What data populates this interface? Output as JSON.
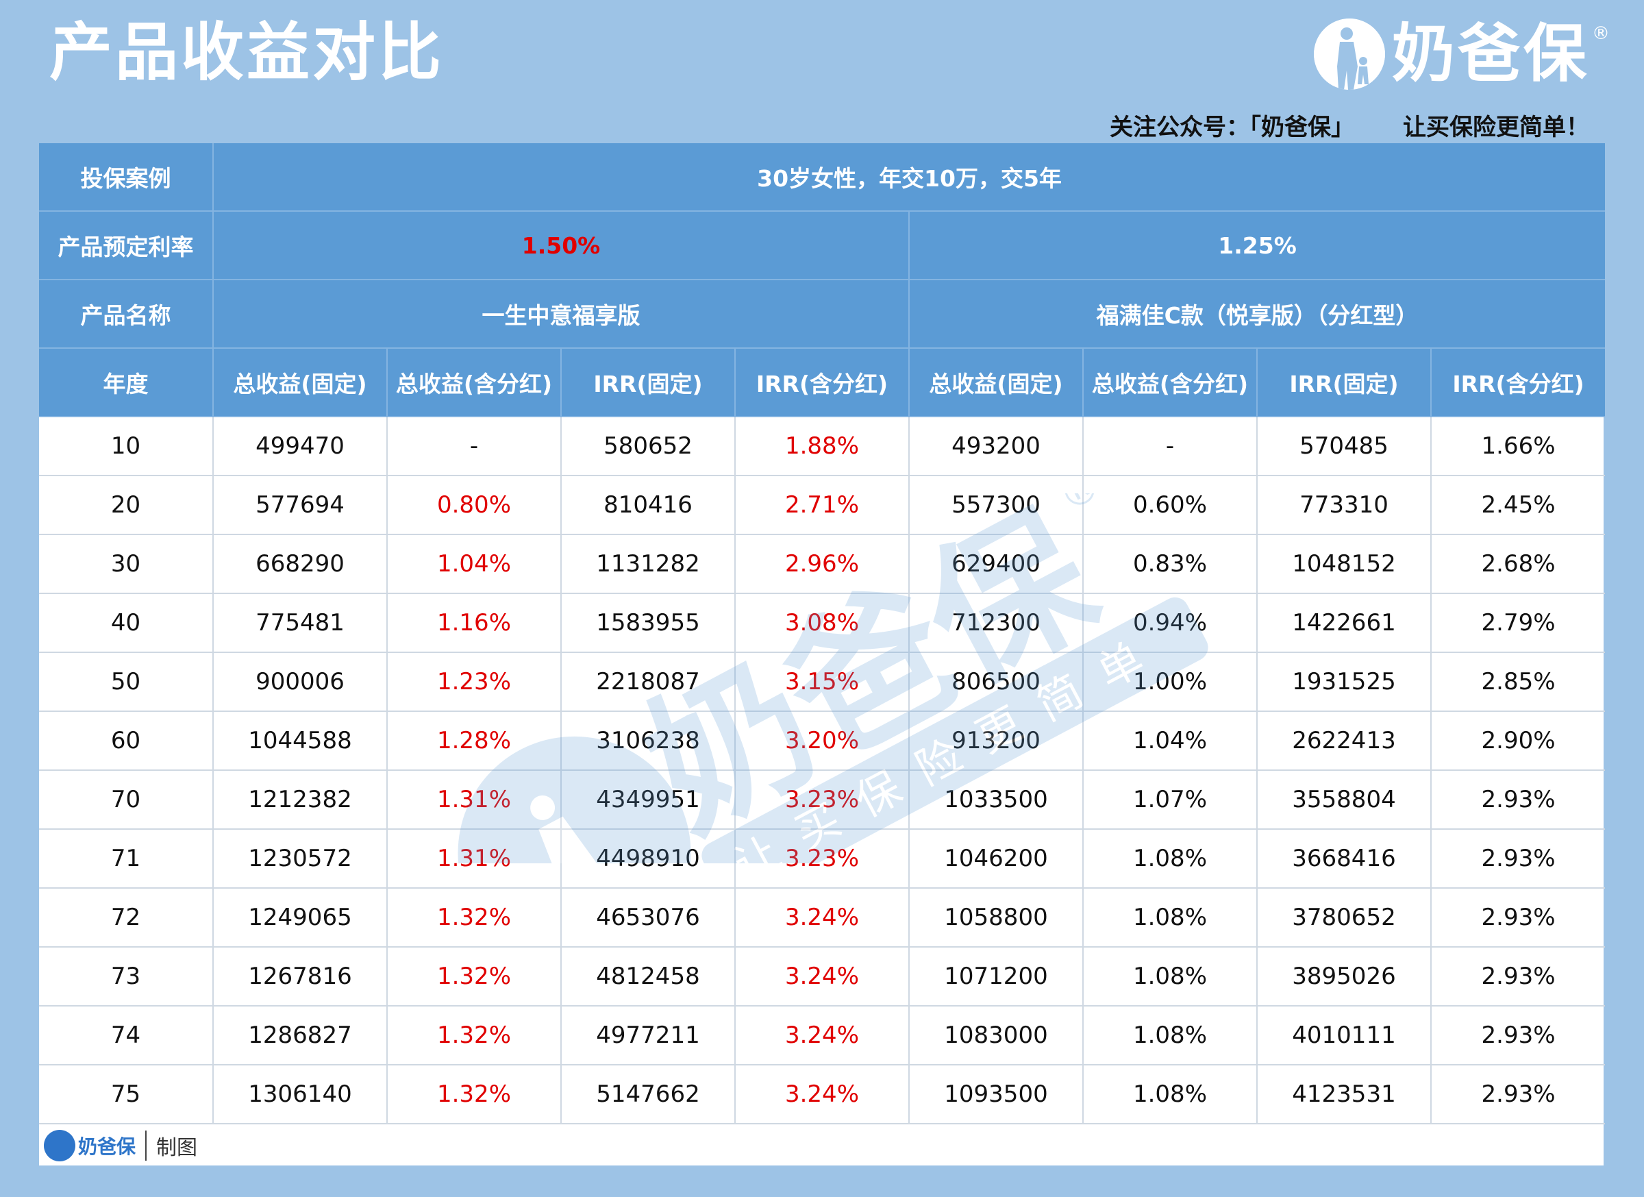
{
  "header": {
    "title": "产品收益对比",
    "brand": "奶爸保",
    "reg_mark": "®",
    "slogan": "关注公众号：「奶爸保」      让买保险更简单！"
  },
  "table": {
    "case_label": "投保案例",
    "case_value": "30岁女性，年交10万，交5年",
    "rate_label": "产品预定利率",
    "rate_a": "1.50%",
    "rate_b": "1.25%",
    "name_label": "产品名称",
    "name_a": "一生中意福享版",
    "name_b": "福满佳C款（悦享版）（分红型）",
    "columns": [
      "年度",
      "总收益(固定)",
      "总收益(含分红)",
      "IRR(固定)",
      "IRR(含分红)",
      "总收益(固定)",
      "总收益(含分红)",
      "IRR(固定)",
      "IRR(含分红)"
    ],
    "rows": [
      [
        "10",
        "499470",
        "-",
        "580652",
        "1.88%",
        "493200",
        "-",
        "570485",
        "1.66%"
      ],
      [
        "20",
        "577694",
        "0.80%",
        "810416",
        "2.71%",
        "557300",
        "0.60%",
        "773310",
        "2.45%"
      ],
      [
        "30",
        "668290",
        "1.04%",
        "1131282",
        "2.96%",
        "629400",
        "0.83%",
        "1048152",
        "2.68%"
      ],
      [
        "40",
        "775481",
        "1.16%",
        "1583955",
        "3.08%",
        "712300",
        "0.94%",
        "1422661",
        "2.79%"
      ],
      [
        "50",
        "900006",
        "1.23%",
        "2218087",
        "3.15%",
        "806500",
        "1.00%",
        "1931525",
        "2.85%"
      ],
      [
        "60",
        "1044588",
        "1.28%",
        "3106238",
        "3.20%",
        "913200",
        "1.04%",
        "2622413",
        "2.90%"
      ],
      [
        "70",
        "1212382",
        "1.31%",
        "4349951",
        "3.23%",
        "1033500",
        "1.07%",
        "3558804",
        "2.93%"
      ],
      [
        "71",
        "1230572",
        "1.31%",
        "4498910",
        "3.23%",
        "1046200",
        "1.08%",
        "3668416",
        "2.93%"
      ],
      [
        "72",
        "1249065",
        "1.32%",
        "4653076",
        "3.24%",
        "1058800",
        "1.08%",
        "3780652",
        "2.93%"
      ],
      [
        "73",
        "1267816",
        "1.32%",
        "4812458",
        "3.24%",
        "1071200",
        "1.08%",
        "3895026",
        "2.93%"
      ],
      [
        "74",
        "1286827",
        "1.32%",
        "4977211",
        "3.24%",
        "1083000",
        "1.08%",
        "4010111",
        "2.93%"
      ],
      [
        "75",
        "1306140",
        "1.32%",
        "5147662",
        "3.24%",
        "1093500",
        "1.08%",
        "4123531",
        "2.93%"
      ]
    ]
  },
  "watermark": {
    "brand": "奶爸保",
    "tagline": "让买保险更简单",
    "reg_mark": "®"
  },
  "footer": {
    "brand": "奶爸保",
    "label": "制图"
  },
  "colors": {
    "background": "#9dc3e6",
    "header_blue": "#5b9bd5",
    "highlight_red": "#e00000"
  },
  "icons": {
    "logo": "parent-child-silhouette-icon"
  }
}
